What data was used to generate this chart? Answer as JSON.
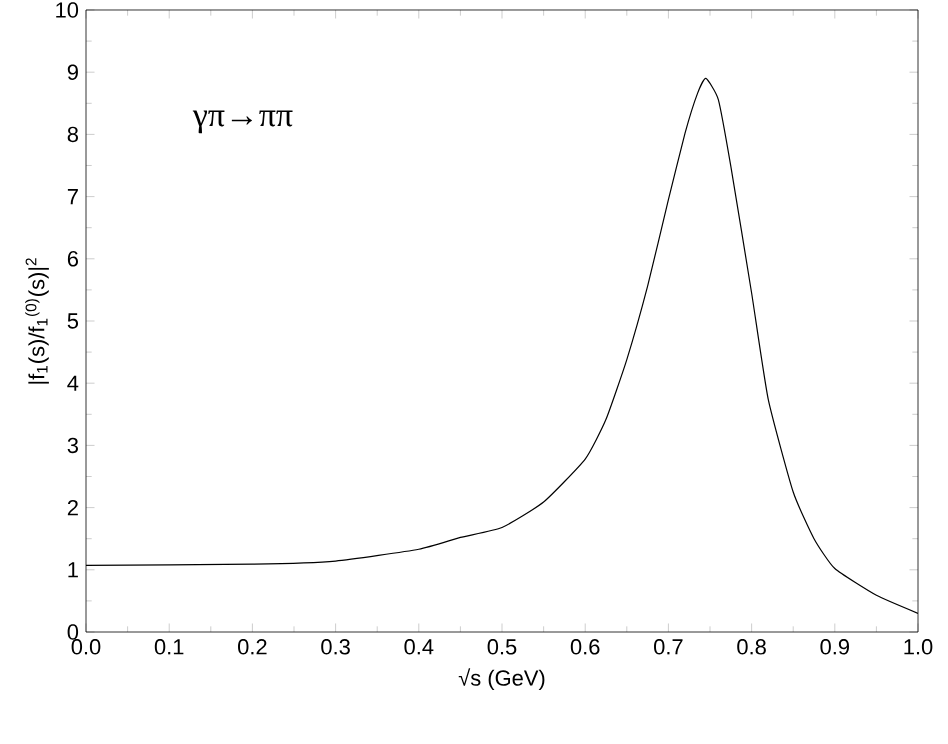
{
  "chart_data": {
    "type": "line",
    "xlabel": "√s (GeV)",
    "ylabel": "|f$_{1}$(s)/f$_{1}$$^{(0)}$(s)|$^{2}$",
    "annotations": [
      "γπ→ππ"
    ],
    "x": [
      0,
      0.2,
      0.3,
      0.4,
      0.45,
      0.5,
      0.55,
      0.6,
      0.625,
      0.65,
      0.675,
      0.7,
      0.72,
      0.735,
      0.745,
      0.76,
      0.775,
      0.8,
      0.82,
      0.85,
      0.875,
      0.9,
      0.95,
      1.0
    ],
    "series": [
      {
        "color": "#000000",
        "values": [
          1.07,
          1.09,
          1.14,
          1.33,
          1.52,
          1.68,
          2.09,
          2.78,
          3.42,
          4.38,
          5.56,
          6.95,
          8.02,
          8.66,
          8.9,
          8.56,
          7.49,
          5.45,
          3.74,
          2.25,
          1.5,
          1.02,
          0.59,
          0.3
        ]
      }
    ],
    "xlim": [
      0,
      1
    ],
    "ylim": [
      0,
      10
    ],
    "xticks": [
      {
        "value": 0,
        "label": "0.0"
      },
      {
        "value": 0.1,
        "label": "0.1"
      },
      {
        "value": 0.2,
        "label": "0.2"
      },
      {
        "value": 0.3,
        "label": "0.3"
      },
      {
        "value": 0.4,
        "label": "0.4"
      },
      {
        "value": 0.5,
        "label": "0.5"
      },
      {
        "value": 0.6,
        "label": "0.6"
      },
      {
        "value": 0.7,
        "label": "0.7"
      },
      {
        "value": 0.8,
        "label": "0.8"
      },
      {
        "value": 0.9,
        "label": "0.9"
      },
      {
        "value": 1,
        "label": "1.0"
      }
    ],
    "yticks": [
      0,
      1,
      2,
      3,
      4,
      5,
      6,
      7,
      8,
      9,
      10
    ],
    "grid": false,
    "marker": "none",
    "line_style": "solid"
  }
}
